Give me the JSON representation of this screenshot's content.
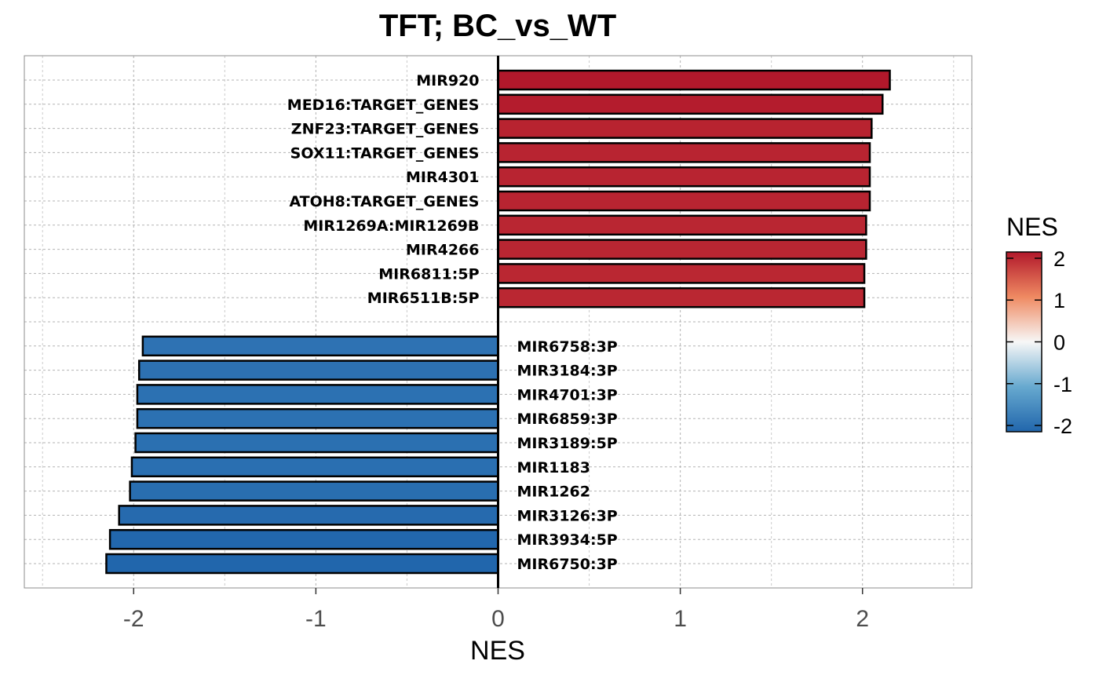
{
  "chart_data": {
    "type": "bar",
    "orientation": "horizontal",
    "title": "TFT; BC_vs_WT",
    "xlabel": "NES",
    "ylabel": "",
    "xlim": [
      -2.6,
      2.6
    ],
    "xticks": [
      -2,
      -1,
      0,
      1,
      2
    ],
    "xtick_labels": [
      "-2",
      "-1",
      "0",
      "1",
      "2"
    ],
    "grid": true,
    "legend": {
      "title": "NES",
      "placement": "right",
      "type": "colorbar",
      "ticks": [
        2,
        1,
        0,
        -1,
        -2
      ],
      "tick_labels": [
        "2",
        "1",
        "0",
        "-1",
        "-2"
      ],
      "range": [
        -2.15,
        2.15
      ],
      "colors": {
        "low": "#2166ac",
        "mid": "#f7f7f7",
        "high": "#b2182b"
      }
    },
    "categories": [
      "MIR920",
      "MED16:TARGET_GENES",
      "ZNF23:TARGET_GENES",
      "SOX11:TARGET_GENES",
      "MIR4301",
      "ATOH8:TARGET_GENES",
      "MIR1269A:MIR1269B",
      "MIR4266",
      "MIR6811:5P",
      "MIR6511B:5P",
      "",
      "MIR6758:3P",
      "MIR3184:3P",
      "MIR4701:3P",
      "MIR6859:3P",
      "MIR3189:5P",
      "MIR1183",
      "MIR1262",
      "MIR3126:3P",
      "MIR3934:5P",
      "MIR6750:3P"
    ],
    "values": [
      2.15,
      2.11,
      2.05,
      2.04,
      2.04,
      2.04,
      2.02,
      2.02,
      2.01,
      2.01,
      null,
      -1.95,
      -1.97,
      -1.98,
      -1.98,
      -1.99,
      -2.01,
      -2.02,
      -2.08,
      -2.13,
      -2.15
    ]
  }
}
